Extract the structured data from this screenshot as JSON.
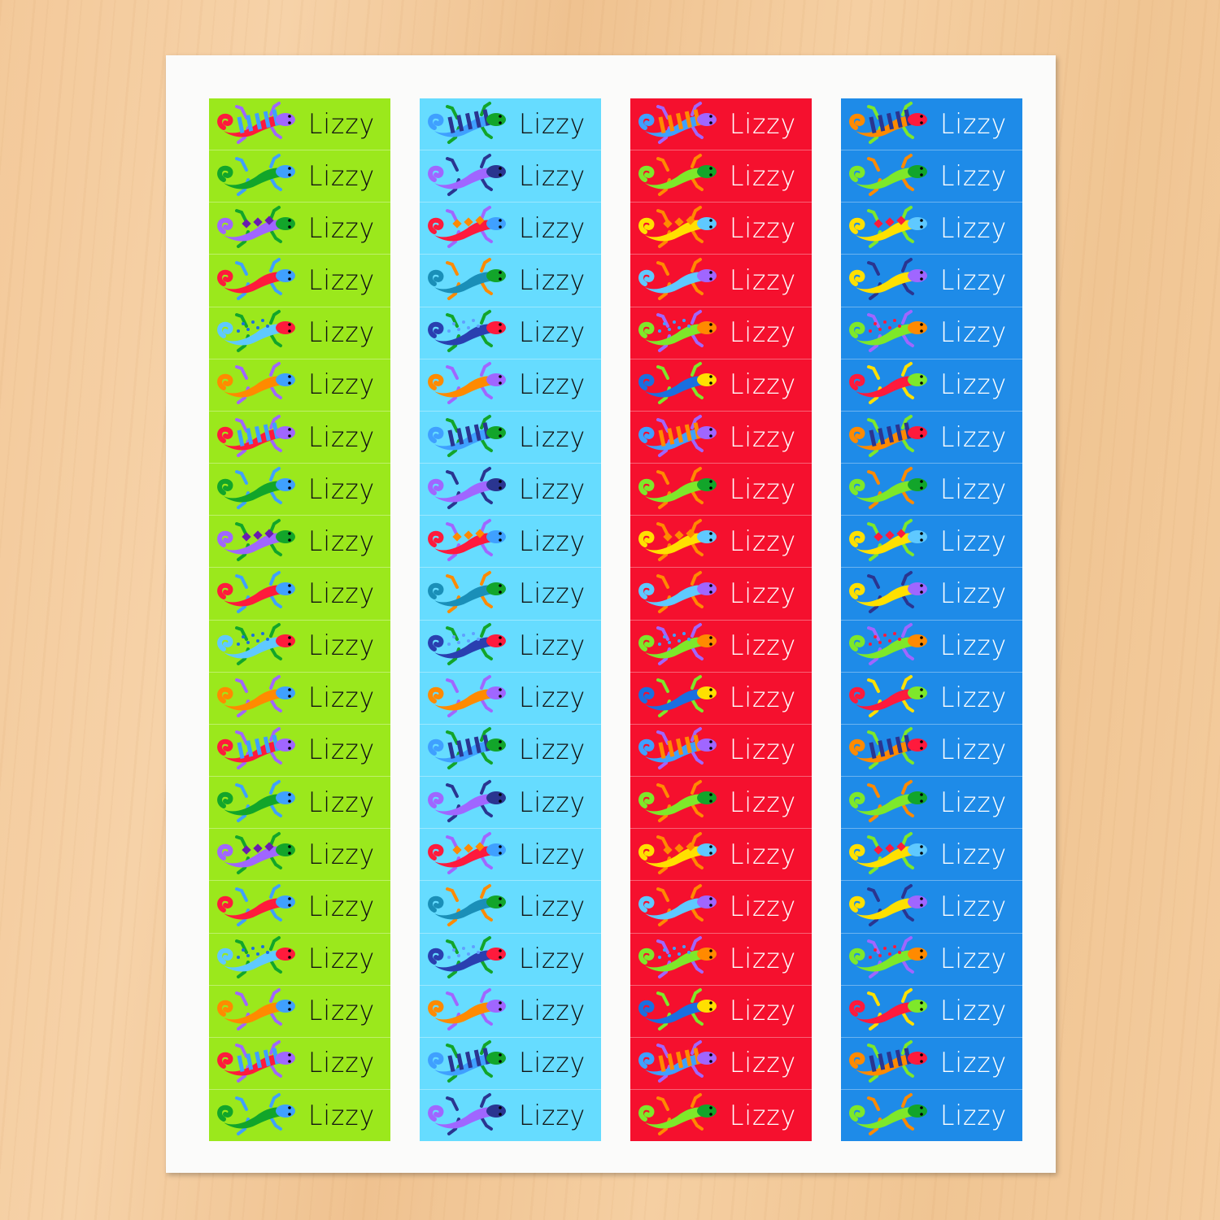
{
  "label_text": "Lizzy",
  "label_count": 20,
  "columns": [
    {
      "background": "#9be81c",
      "text_color": "#111111",
      "geckos": [
        {
          "body": "#ff1a3c",
          "stripe": "#3fa0ff",
          "head": "#a066ff",
          "legs": "#a066ff",
          "pattern": "stripes"
        },
        {
          "body": "#12a52a",
          "stripe": "#12a52a",
          "head": "#3fa0ff",
          "legs": "#3fa0ff",
          "pattern": "plain"
        },
        {
          "body": "#a066ff",
          "stripe": "#6a1bb0",
          "head": "#12a52a",
          "legs": "#12a52a",
          "pattern": "diamonds"
        },
        {
          "body": "#ff1a3c",
          "stripe": "#ff1a3c",
          "head": "#3fa0ff",
          "legs": "#3fa0ff",
          "pattern": "plain"
        },
        {
          "body": "#5fc9ff",
          "stripe": "#1a6fe0",
          "head": "#ff1a3c",
          "legs": "#12a52a",
          "pattern": "dots"
        },
        {
          "body": "#ff8a00",
          "stripe": "#ff8a00",
          "head": "#3fa0ff",
          "legs": "#a066ff",
          "pattern": "plain"
        }
      ]
    },
    {
      "background": "#66dcff",
      "text_color": "#111111",
      "geckos": [
        {
          "body": "#3fa0ff",
          "stripe": "#2a3590",
          "head": "#12a52a",
          "legs": "#12a52a",
          "pattern": "stripes"
        },
        {
          "body": "#a066ff",
          "stripe": "#a066ff",
          "head": "#2a3590",
          "legs": "#2a3590",
          "pattern": "plain"
        },
        {
          "body": "#ff1a3c",
          "stripe": "#ff8a00",
          "head": "#3fa0ff",
          "legs": "#a066ff",
          "pattern": "diamonds"
        },
        {
          "body": "#1a8fb8",
          "stripe": "#1a8fb8",
          "head": "#12a52a",
          "legs": "#ff8a00",
          "pattern": "plain"
        },
        {
          "body": "#2a3fb0",
          "stripe": "#5fa0ff",
          "head": "#ff1a3c",
          "legs": "#12a52a",
          "pattern": "dots"
        },
        {
          "body": "#ff8a00",
          "stripe": "#ff8a00",
          "head": "#a066ff",
          "legs": "#a066ff",
          "pattern": "plain"
        }
      ]
    },
    {
      "background": "#f5102e",
      "text_color": "#ffffff",
      "geckos": [
        {
          "body": "#3fa0ff",
          "stripe": "#ff8a00",
          "head": "#a066ff",
          "legs": "#a066ff",
          "pattern": "stripes"
        },
        {
          "body": "#7ee82a",
          "stripe": "#7ee82a",
          "head": "#12a52a",
          "legs": "#ff8a00",
          "pattern": "plain"
        },
        {
          "body": "#ffe000",
          "stripe": "#ff8a00",
          "head": "#5fc9ff",
          "legs": "#ff8a00",
          "pattern": "diamonds"
        },
        {
          "body": "#5fc9ff",
          "stripe": "#5fc9ff",
          "head": "#a066ff",
          "legs": "#ff8a00",
          "pattern": "plain"
        },
        {
          "body": "#7ee82a",
          "stripe": "#3fa0ff",
          "head": "#ff8a00",
          "legs": "#a066ff",
          "pattern": "dots"
        },
        {
          "body": "#1a6fe0",
          "stripe": "#1a6fe0",
          "head": "#ffe000",
          "legs": "#7ee82a",
          "pattern": "plain"
        }
      ]
    },
    {
      "background": "#1e8be8",
      "text_color": "#ffffff",
      "geckos": [
        {
          "body": "#ff8a00",
          "stripe": "#2a3590",
          "head": "#ff1a3c",
          "legs": "#7ee82a",
          "pattern": "stripes"
        },
        {
          "body": "#7ee82a",
          "stripe": "#7ee82a",
          "head": "#12a52a",
          "legs": "#ff8a00",
          "pattern": "plain"
        },
        {
          "body": "#ffe000",
          "stripe": "#ff1a3c",
          "head": "#5fc9ff",
          "legs": "#7ee82a",
          "pattern": "diamonds"
        },
        {
          "body": "#ffe000",
          "stripe": "#ffe000",
          "head": "#a066ff",
          "legs": "#2a3590",
          "pattern": "plain"
        },
        {
          "body": "#7ee82a",
          "stripe": "#ff1a3c",
          "head": "#ff8a00",
          "legs": "#a066ff",
          "pattern": "dots"
        },
        {
          "body": "#ff1a3c",
          "stripe": "#ff1a3c",
          "head": "#7ee82a",
          "legs": "#ffe000",
          "pattern": "plain"
        }
      ]
    }
  ]
}
